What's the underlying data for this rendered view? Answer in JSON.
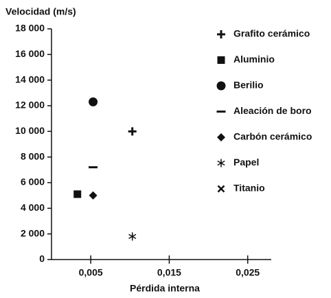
{
  "chart_data": {
    "type": "scatter",
    "title": "Velocidad (m/s)",
    "x_label": "Pérdida interna",
    "xlim": [
      0,
      0.028
    ],
    "xticks": [
      {
        "value": 0.005,
        "label": "0,005"
      },
      {
        "value": 0.015,
        "label": "0,015"
      },
      {
        "value": 0.025,
        "label": "0,025"
      }
    ],
    "ylim": [
      0,
      18000
    ],
    "yticks": [
      0,
      {
        "value": 2000,
        "label": "2 000"
      },
      {
        "value": 4000,
        "label": "4 000"
      },
      {
        "value": 6000,
        "label": "6 000"
      },
      {
        "value": 8000,
        "label": "8 000"
      },
      {
        "value": 10000,
        "label": "10 000"
      },
      {
        "value": 12000,
        "label": "12 000"
      },
      {
        "value": 14000,
        "label": "14 000"
      },
      {
        "value": 16000,
        "label": "16 000"
      },
      {
        "value": 18000,
        "label": "18 000"
      }
    ],
    "series": [
      {
        "name": "Grafito cerámico",
        "marker": "plus",
        "color": "#111111",
        "x": [
          0.0103
        ],
        "values": [
          10000
        ]
      },
      {
        "name": "Aluminio",
        "marker": "square",
        "color": "#111111",
        "x": [
          0.0033
        ],
        "values": [
          5100
        ]
      },
      {
        "name": "Berilio",
        "marker": "circle",
        "color": "#111111",
        "x": [
          0.0053
        ],
        "values": [
          12300
        ]
      },
      {
        "name": "Aleación de boro",
        "marker": "dash",
        "color": "#111111",
        "x": [
          0.0053
        ],
        "values": [
          7200
        ]
      },
      {
        "name": "Carbón cerámico",
        "marker": "diamond",
        "color": "#111111",
        "x": [
          0.0053
        ],
        "values": [
          5000
        ]
      },
      {
        "name": "Papel",
        "marker": "asterisk",
        "color": "#111111",
        "x": [
          0.0103
        ],
        "values": [
          1800
        ]
      },
      {
        "name": "Titanio",
        "marker": "cross",
        "color": "#111111",
        "x": [
          0.0033
        ],
        "values": [
          5100
        ]
      }
    ]
  }
}
